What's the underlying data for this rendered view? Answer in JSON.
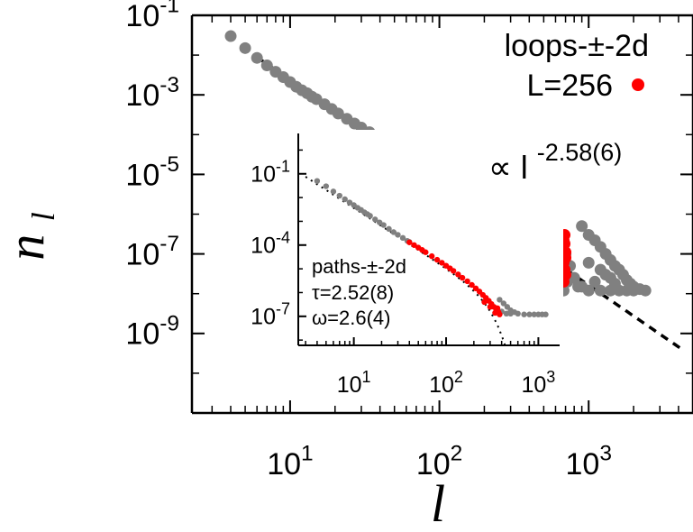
{
  "chart_data": {
    "type": "scatter",
    "title": "",
    "xlabel": "l",
    "ylabel": "n",
    "ylabel_subscript": "l",
    "xscale": "log",
    "yscale": "log",
    "xlim": [
      2.2,
      5000
    ],
    "ylim": [
      1e-11,
      0.1
    ],
    "xticks": [
      {
        "value": 10,
        "base": "10",
        "exp": "1"
      },
      {
        "value": 100,
        "base": "10",
        "exp": "2"
      },
      {
        "value": 1000,
        "base": "10",
        "exp": "3"
      }
    ],
    "yticks": [
      {
        "value": 0.1,
        "base": "10",
        "exp": "-1"
      },
      {
        "value": 0.001,
        "base": "10",
        "exp": "-3"
      },
      {
        "value": 1e-05,
        "base": "10",
        "exp": "-5"
      },
      {
        "value": 1e-07,
        "base": "10",
        "exp": "-7"
      },
      {
        "value": 1e-09,
        "base": "10",
        "exp": "-9"
      }
    ],
    "legend": {
      "label": "loops-±-2d",
      "series_label": "L=256",
      "placement": "top-right"
    },
    "fit": {
      "label_prefix": "∝ l",
      "exponent": "-2.58(6)",
      "slope": -2.58,
      "amplitude": 0.9
    },
    "series": [
      {
        "color": "#808080",
        "points": [
          [
            4,
            0.03
          ],
          [
            5,
            0.015
          ],
          [
            6,
            0.0085
          ],
          [
            7,
            0.0055
          ],
          [
            8,
            0.0038
          ],
          [
            9,
            0.0028
          ],
          [
            10,
            0.0021
          ],
          [
            11,
            0.0016
          ],
          [
            12,
            0.0013
          ],
          [
            13,
            0.0011
          ],
          [
            14,
            0.0009
          ],
          [
            15,
            0.00078
          ],
          [
            17,
            0.00058
          ],
          [
            19,
            0.00044
          ],
          [
            21,
            0.00034
          ],
          [
            24,
            0.00025
          ],
          [
            27,
            0.00019
          ],
          [
            30,
            0.00015
          ],
          [
            34,
            0.000115
          ],
          [
            38,
            8.8e-05
          ],
          [
            43,
            6.7e-05
          ],
          [
            48,
            5.2e-05
          ],
          [
            54,
            4e-05
          ],
          [
            60,
            3.2e-05
          ],
          [
            900,
            5e-07
          ],
          [
            1000,
            3e-07
          ],
          [
            1100,
            2.2e-07
          ],
          [
            1200,
            1.5e-07
          ],
          [
            1300,
            1e-07
          ],
          [
            1400,
            7e-08
          ],
          [
            1500,
            5e-08
          ],
          [
            1600,
            4e-08
          ],
          [
            1700,
            3e-08
          ],
          [
            1800,
            2.2e-08
          ],
          [
            1900,
            1.8e-08
          ],
          [
            2000,
            1.5e-08
          ],
          [
            2200,
            1.3e-08
          ],
          [
            2400,
            1.2e-08
          ],
          [
            1000,
            1.2e-08
          ],
          [
            1200,
            1.2e-08
          ],
          [
            1400,
            1.2e-08
          ],
          [
            1600,
            1.2e-08
          ],
          [
            1800,
            1.2e-08
          ],
          [
            2000,
            1.2e-08
          ],
          [
            900,
            1.5e-08
          ],
          [
            1100,
            2e-08
          ],
          [
            1300,
            3e-08
          ],
          [
            1500,
            1.8e-08
          ],
          [
            700,
            1e-07
          ],
          [
            750,
            5e-08
          ],
          [
            800,
            2.5e-08
          ],
          [
            850,
            1.5e-08
          ],
          [
            680,
            1.2e-08
          ],
          [
            720,
            2e-08
          ],
          [
            1000,
            6e-08
          ],
          [
            1200,
            4e-08
          ],
          [
            1400,
            2.5e-08
          ]
        ]
      },
      {
        "color": "#ff0000",
        "points": [
          [
            60,
            3e-05
          ],
          [
            65,
            2.5e-05
          ],
          [
            70,
            2.1e-05
          ],
          [
            75,
            1.8e-05
          ],
          [
            80,
            1.5e-05
          ],
          [
            85,
            1.3e-05
          ],
          [
            90,
            1.1e-05
          ],
          [
            100,
            8.5e-06
          ],
          [
            110,
            6.8e-06
          ],
          [
            120,
            5.5e-06
          ],
          [
            130,
            4.5e-06
          ],
          [
            140,
            3.7e-06
          ],
          [
            150,
            3.1e-06
          ],
          [
            165,
            2.5e-06
          ],
          [
            180,
            2e-06
          ],
          [
            200,
            1.6e-06
          ],
          [
            220,
            1.3e-06
          ],
          [
            240,
            1.1e-06
          ],
          [
            260,
            9.5e-07
          ],
          [
            280,
            8e-07
          ],
          [
            300,
            7e-07
          ],
          [
            320,
            6e-07
          ],
          [
            350,
            5e-07
          ],
          [
            380,
            4.3e-07
          ],
          [
            410,
            3.6e-07
          ],
          [
            440,
            3.1e-07
          ],
          [
            480,
            2.6e-07
          ],
          [
            520,
            2.2e-07
          ],
          [
            560,
            1.9e-07
          ],
          [
            600,
            1.6e-07
          ],
          [
            640,
            1.4e-07
          ],
          [
            680,
            1.2e-07
          ],
          [
            700,
            1.1e-07
          ],
          [
            700,
            8e-08
          ],
          [
            680,
            6e-08
          ],
          [
            690,
            4e-08
          ],
          [
            700,
            3e-08
          ],
          [
            680,
            2e-08
          ],
          [
            150,
            4e-06
          ],
          [
            200,
            2.1e-06
          ],
          [
            260,
            1.3e-06
          ],
          [
            330,
            8e-07
          ],
          [
            400,
            5e-07
          ],
          [
            470,
            4e-07
          ],
          [
            550,
            3e-07
          ],
          [
            620,
            2.5e-07
          ],
          [
            680,
            2.2e-07
          ],
          [
            690,
            3e-07
          ],
          [
            690,
            1.8e-07
          ]
        ]
      }
    ],
    "inset": {
      "xscale": "log",
      "yscale": "log",
      "xlim": [
        2.5,
        1700
      ],
      "ylim": [
        6e-09,
        5
      ],
      "xticks": [
        {
          "value": 10,
          "base": "10",
          "exp": "1"
        },
        {
          "value": 100,
          "base": "10",
          "exp": "2"
        },
        {
          "value": 1000,
          "base": "10",
          "exp": "3"
        }
      ],
      "yticks": [
        {
          "value": 0.1,
          "base": "10",
          "exp": "-1"
        },
        {
          "value": 0.0001,
          "base": "10",
          "exp": "-4"
        },
        {
          "value": 1e-07,
          "base": "10",
          "exp": "-7"
        }
      ],
      "annotation": [
        "paths-±-2d",
        "τ=2.52(8)",
        "ω=2.6(4)"
      ],
      "tau": 2.52,
      "omega": 2.6,
      "fit_amplitude": 1.2,
      "fit_cutoff": 260,
      "series": [
        {
          "color": "#808080",
          "points": [
            [
              4,
              0.05
            ],
            [
              5,
              0.03
            ],
            [
              6,
              0.018
            ],
            [
              7,
              0.012
            ],
            [
              8,
              0.0085
            ],
            [
              9,
              0.0062
            ],
            [
              10,
              0.0048
            ],
            [
              11,
              0.0037
            ],
            [
              12,
              0.003
            ],
            [
              13,
              0.0024
            ],
            [
              14,
              0.002
            ],
            [
              15,
              0.0017
            ],
            [
              17,
              0.0012
            ],
            [
              19,
              0.0009
            ],
            [
              21,
              0.0007
            ],
            [
              24,
              0.00048
            ],
            [
              27,
              0.00035
            ],
            [
              30,
              0.00027
            ],
            [
              34,
              0.0002
            ],
            [
              38,
              0.00015
            ],
            [
              40,
              0.000135
            ],
            [
              380,
              5e-07
            ],
            [
              420,
              3.5e-07
            ],
            [
              460,
              2.5e-07
            ],
            [
              500,
              1.8e-07
            ],
            [
              550,
              1.5e-07
            ],
            [
              600,
              1.3e-07
            ],
            [
              700,
              1.2e-07
            ],
            [
              800,
              1.2e-07
            ],
            [
              900,
              1.2e-07
            ],
            [
              1000,
              1.2e-07
            ],
            [
              1100,
              1.2e-07
            ],
            [
              1200,
              1.2e-07
            ],
            [
              450,
              1.3e-07
            ],
            [
              400,
              1.6e-07
            ],
            [
              500,
              1.3e-07
            ]
          ]
        },
        {
          "color": "#ff0000",
          "points": [
            [
              40,
              0.00013
            ],
            [
              45,
              0.0001
            ],
            [
              50,
              7.8e-05
            ],
            [
              55,
              6.2e-05
            ],
            [
              60,
              5e-05
            ],
            [
              70,
              3.4e-05
            ],
            [
              80,
              2.4e-05
            ],
            [
              90,
              1.8e-05
            ],
            [
              100,
              1.35e-05
            ],
            [
              110,
              1.05e-05
            ],
            [
              120,
              8.2e-06
            ],
            [
              135,
              5.8e-06
            ],
            [
              150,
              4.2e-06
            ],
            [
              170,
              3e-06
            ],
            [
              190,
              2.1e-06
            ],
            [
              210,
              1.5e-06
            ],
            [
              230,
              1.1e-06
            ],
            [
              250,
              8e-07
            ],
            [
              270,
              6e-07
            ],
            [
              290,
              4.5e-07
            ],
            [
              310,
              3.3e-07
            ],
            [
              330,
              2.5e-07
            ],
            [
              350,
              1.9e-07
            ],
            [
              370,
              1.5e-07
            ],
            [
              380,
              1.2e-07
            ],
            [
              300,
              2.5e-07
            ],
            [
              260,
              4e-07
            ],
            [
              340,
              1.4e-07
            ],
            [
              360,
              2.2e-07
            ]
          ]
        }
      ]
    }
  }
}
